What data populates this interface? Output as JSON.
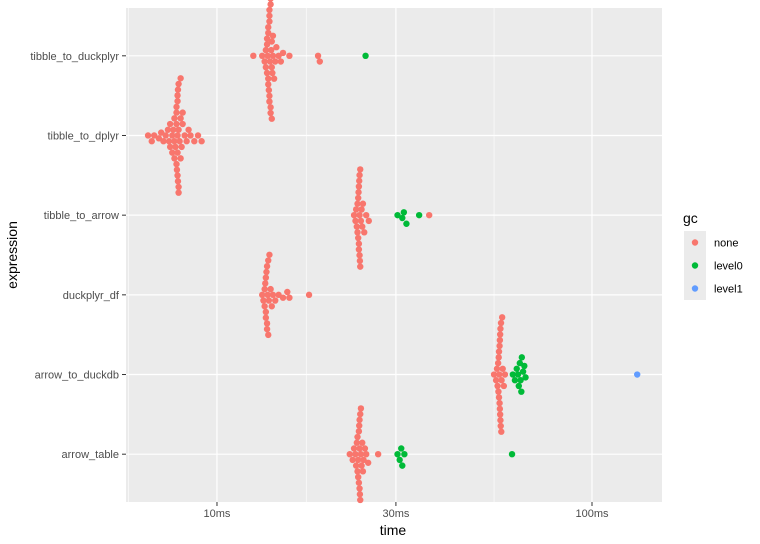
{
  "chart_data": {
    "type": "scatter",
    "subtype": "beeswarm",
    "xlabel": "time",
    "ylabel": "expression",
    "xscale": "log10",
    "xlim_ms": [
      5.72,
      153.7
    ],
    "x_ticks": [
      {
        "value": 10,
        "label": "10ms"
      },
      {
        "value": 30,
        "label": "30ms"
      },
      {
        "value": 100,
        "label": "100ms"
      }
    ],
    "x_minor": [
      17.3,
      54.8
    ],
    "categories": [
      "tibble_to_duckplyr",
      "tibble_to_dplyr",
      "tibble_to_arrow",
      "duckplyr_df",
      "arrow_to_duckdb",
      "arrow_table"
    ],
    "legend": {
      "title": "gc",
      "position": "right",
      "entries": [
        {
          "label": "none",
          "color": "#F8766D"
        },
        {
          "label": "level0",
          "color": "#00BA38"
        },
        {
          "label": "level1",
          "color": "#619CFF"
        }
      ]
    },
    "grid": true,
    "series": {
      "tibble_to_duckplyr": {
        "none": [
          12.5,
          13.2,
          13.4,
          13.5,
          13.5,
          13.6,
          13.6,
          13.6,
          13.65,
          13.7,
          13.7,
          13.7,
          13.7,
          13.75,
          13.8,
          13.8,
          13.8,
          13.8,
          13.8,
          13.85,
          13.9,
          13.9,
          13.9,
          13.9,
          13.95,
          14.0,
          14.0,
          14.0,
          14.05,
          14.1,
          14.1,
          14.2,
          14.3,
          14.4,
          14.6,
          14.8,
          15.0,
          15.6,
          18.6,
          18.8
        ],
        "level0": [
          24.9
        ],
        "level1": []
      },
      "tibble_to_dplyr": {
        "none": [
          6.55,
          6.7,
          6.8,
          7.0,
          7.1,
          7.2,
          7.3,
          7.4,
          7.45,
          7.5,
          7.5,
          7.6,
          7.6,
          7.65,
          7.7,
          7.7,
          7.7,
          7.75,
          7.8,
          7.8,
          7.8,
          7.8,
          7.82,
          7.85,
          7.85,
          7.85,
          7.85,
          7.85,
          7.87,
          7.87,
          7.9,
          7.9,
          7.9,
          7.9,
          7.95,
          8.0,
          8.0,
          8.0,
          8.05,
          8.1,
          8.1,
          8.2,
          8.3,
          8.4,
          8.5,
          8.7,
          8.9,
          9.1
        ],
        "level0": [],
        "level1": []
      },
      "tibble_to_arrow": {
        "none": [
          23.2,
          23.4,
          23.5,
          23.6,
          23.7,
          23.7,
          23.8,
          23.8,
          23.85,
          23.9,
          23.9,
          23.9,
          23.95,
          24.0,
          24.0,
          24.0,
          24.05,
          24.1,
          24.1,
          24.2,
          24.3,
          24.4,
          24.5,
          24.7,
          25.0,
          25.4,
          36.8
        ],
        "level0": [
          30.3,
          31.2,
          31.5,
          32.0,
          34.6
        ],
        "level1": []
      },
      "duckplyr_df": {
        "none": [
          13.2,
          13.3,
          13.4,
          13.4,
          13.45,
          13.5,
          13.5,
          13.5,
          13.55,
          13.6,
          13.6,
          13.6,
          13.65,
          13.7,
          13.7,
          13.75,
          13.8,
          13.9,
          14.0,
          14.1,
          14.3,
          14.6,
          15.0,
          15.4,
          15.6,
          17.6
        ],
        "level0": [],
        "level1": []
      },
      "arrow_to_duckdb": {
        "none": [
          54.8,
          55.5,
          55.8,
          56.0,
          56.2,
          56.3,
          56.4,
          56.5,
          56.5,
          56.6,
          56.7,
          56.7,
          56.8,
          56.8,
          56.9,
          56.9,
          57.0,
          57.0,
          57.1,
          57.2,
          57.3,
          57.4,
          57.6,
          57.8,
          58.2,
          58.6
        ],
        "level0": [
          61.5,
          62.3,
          63.0,
          63.5,
          63.8,
          64.2,
          64.5,
          64.8,
          65.0,
          65.5,
          66.0,
          66.5
        ],
        "level1": [
          132
        ]
      },
      "arrow_table": {
        "none": [
          22.6,
          23.0,
          23.2,
          23.4,
          23.5,
          23.6,
          23.7,
          23.7,
          23.8,
          23.8,
          23.9,
          23.9,
          23.95,
          24.0,
          24.0,
          24.0,
          24.05,
          24.1,
          24.1,
          24.2,
          24.2,
          24.3,
          24.4,
          24.5,
          24.6,
          24.8,
          25.0,
          25.3,
          26.9
        ],
        "level0": [
          30.3,
          30.7,
          31.0,
          31.2,
          31.6,
          61.2
        ],
        "level1": []
      }
    }
  }
}
